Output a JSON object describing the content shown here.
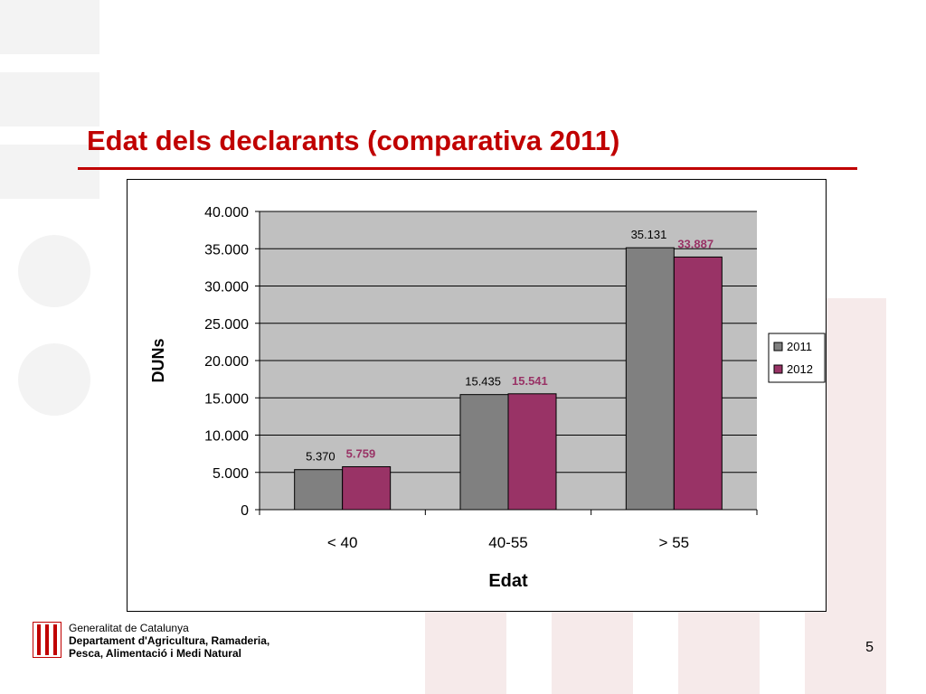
{
  "slide": {
    "title": "Edat dels declarants (comparativa 2011)",
    "page_number": "5"
  },
  "footer": {
    "org": "Generalitat de Catalunya",
    "dept_line1": "Departament d'Agricultura, Ramaderia,",
    "dept_line2": "Pesca, Alimentació i Medi Natural"
  },
  "colors": {
    "title": "#c00000",
    "series_2011": "#808080",
    "series_2012": "#993366",
    "plot_bg": "#c0c0c0"
  },
  "chart_data": {
    "type": "bar",
    "title": "",
    "xlabel": "Edat",
    "ylabel": "DUNs",
    "categories": [
      "< 40",
      "40-55",
      "> 55"
    ],
    "ylim": [
      0,
      40000
    ],
    "yticks": [
      0,
      5000,
      10000,
      15000,
      20000,
      25000,
      30000,
      35000,
      40000
    ],
    "ytick_labels": [
      "0",
      "5.000",
      "10.000",
      "15.000",
      "20.000",
      "25.000",
      "30.000",
      "35.000",
      "40.000"
    ],
    "grid": true,
    "legend": "right",
    "series": [
      {
        "name": "2011",
        "values": [
          5370,
          15435,
          35131
        ],
        "labels": [
          "5.370",
          "15.435",
          "35.131"
        ],
        "color": "#808080"
      },
      {
        "name": "2012",
        "values": [
          5759,
          15541,
          33887
        ],
        "labels": [
          "5.759",
          "15.541",
          "33.887"
        ],
        "color": "#993366"
      }
    ]
  }
}
